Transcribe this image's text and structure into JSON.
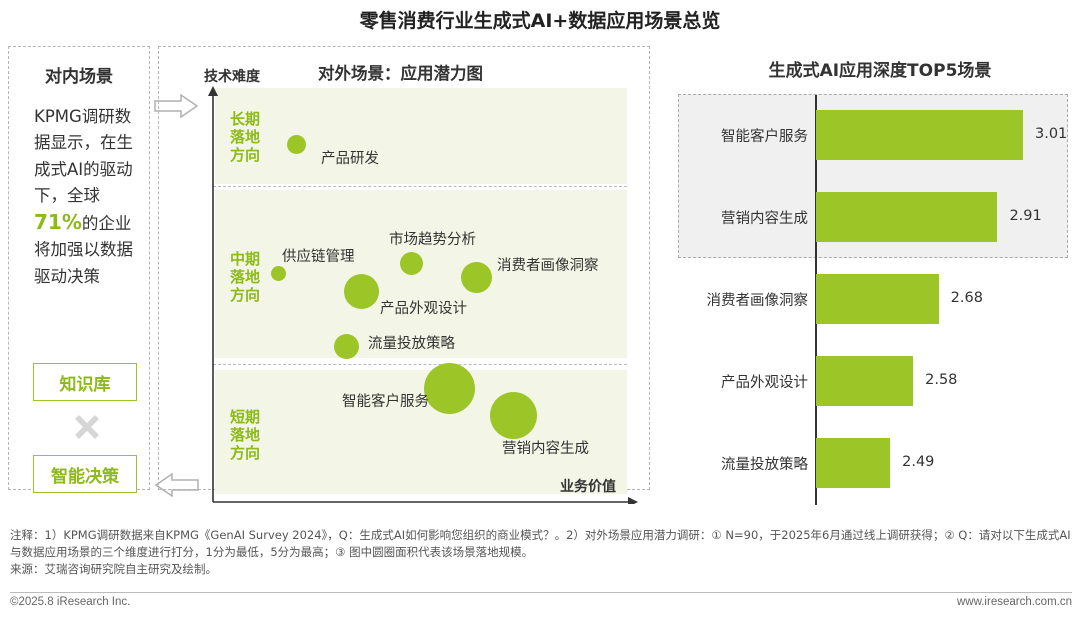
{
  "title": "零售消费行业生成式AI+数据应用场景总览",
  "left": {
    "title": "对内场景",
    "text_before": "KPMG调研数据显示，在生成式AI的驱动下，全球",
    "highlight": "71%",
    "text_after": "的企业将加强以数据驱动决策",
    "tag_kb": "知识库",
    "tag_decision": "智能决策"
  },
  "middle": {
    "title": "对外场景：应用潜力图",
    "y_axis_label": "技术难度",
    "x_axis_label": "业务价值",
    "bands": [
      {
        "label": "长期\n落地\n方向"
      },
      {
        "label": "中期\n落地\n方向"
      },
      {
        "label": "短期\n落地\n方向"
      }
    ],
    "bubbles": [
      {
        "name": "产品研发"
      },
      {
        "name": "供应链管理"
      },
      {
        "name": "市场趋势分析"
      },
      {
        "name": "消费者画像洞察"
      },
      {
        "name": "产品外观设计"
      },
      {
        "name": "流量投放策略"
      },
      {
        "name": "智能客户服务"
      },
      {
        "name": "营销内容生成"
      }
    ]
  },
  "chart_data": {
    "type": "bar",
    "orientation": "horizontal",
    "title": "生成式AI应用深度TOP5场景",
    "categories": [
      "智能客户服务",
      "营销内容生成",
      "消费者画像洞察",
      "产品外观设计",
      "流量投放策略"
    ],
    "values": [
      3.01,
      2.91,
      2.68,
      2.58,
      2.49
    ],
    "value_labels": [
      "3.01",
      "2.91",
      "2.68",
      "2.58",
      "2.49"
    ],
    "xlim": [
      2.2,
      3.1
    ],
    "highlighted_top": 2,
    "grid": false,
    "colors": {
      "bar": "#9cc528",
      "highlight_bg": "#f0f0f0"
    }
  },
  "note": "注释：1）KPMG调研数据来自KPMG《GenAI Survey 2024》，Q：生成式AI如何影响您组织的商业模式？。2）对外场景应用潜力调研：① N=90，于2025年6月通过线上调研获得；② Q：请对以下生成式AI与数据应用场景的三个维度进行打分，1分为最低，5分为最高；③ 图中圆圈面积代表该场景落地规模。",
  "source": "来源：艾瑞咨询研究院自主研究及绘制。",
  "footer": {
    "copyright": "©2025.8 iResearch Inc.",
    "website": "www.iresearch.com.cn"
  },
  "colors": {
    "accent": "#9cc528",
    "accent_text": "#8cba18",
    "band_bg": "#f3f6e6"
  }
}
